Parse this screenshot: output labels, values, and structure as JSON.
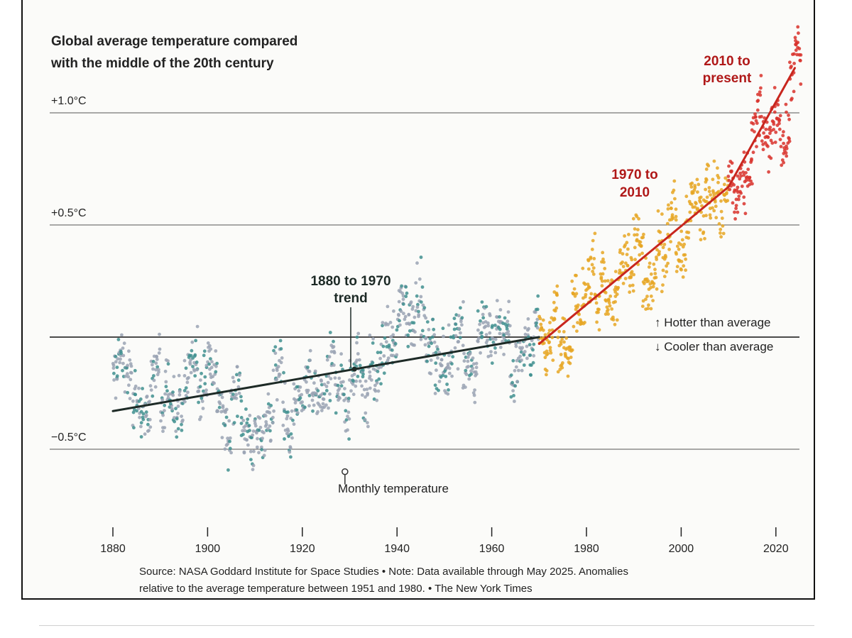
{
  "chart_data": {
    "type": "scatter",
    "title": "Global average temperature compared",
    "subtitle": "with the middle of the 20th century",
    "xlim": [
      1880,
      2025
    ],
    "ylim": [
      -0.75,
      1.35
    ],
    "x_ticks": [
      1880,
      1900,
      1920,
      1940,
      1960,
      1980,
      2000,
      2020
    ],
    "x_tick_labels": [
      "1880",
      "1900",
      "1920",
      "1940",
      "1960",
      "1980",
      "2000",
      "2020"
    ],
    "y_gridlines": [
      {
        "value": 1.0,
        "label": "+1.0°C"
      },
      {
        "value": 0.5,
        "label": "+0.5°C"
      },
      {
        "value": 0.0,
        "label": ""
      },
      {
        "value": -0.5,
        "label": "−0.5°C"
      }
    ],
    "series": [
      {
        "key": "1880-1970",
        "color": "#9aa3b4",
        "accent_color": "#3f8f8f",
        "start_year": 1880,
        "yearly_means": [
          -0.17,
          -0.09,
          -0.11,
          -0.18,
          -0.28,
          -0.33,
          -0.31,
          -0.36,
          -0.17,
          -0.1,
          -0.35,
          -0.22,
          -0.27,
          -0.31,
          -0.3,
          -0.22,
          -0.11,
          -0.11,
          -0.27,
          -0.17,
          -0.08,
          -0.15,
          -0.28,
          -0.37,
          -0.47,
          -0.26,
          -0.22,
          -0.39,
          -0.43,
          -0.48,
          -0.43,
          -0.44,
          -0.36,
          -0.35,
          -0.15,
          -0.14,
          -0.36,
          -0.46,
          -0.3,
          -0.27,
          -0.27,
          -0.19,
          -0.28,
          -0.26,
          -0.27,
          -0.22,
          -0.1,
          -0.22,
          -0.2,
          -0.36,
          -0.16,
          -0.09,
          -0.16,
          -0.29,
          -0.12,
          -0.2,
          -0.15,
          -0.03,
          -0.02,
          -0.03,
          0.12,
          0.18,
          0.05,
          0.07,
          0.21,
          0.09,
          -0.07,
          -0.03,
          -0.11,
          -0.11,
          -0.17,
          -0.07,
          0.01,
          0.08,
          -0.13,
          -0.14,
          -0.19,
          0.05,
          0.06,
          0.03,
          -0.03,
          0.06,
          0.03,
          0.05,
          -0.2,
          -0.11,
          -0.06,
          -0.02,
          -0.08,
          0.05
        ]
      },
      {
        "key": "1970-2010",
        "color": "#e6a623",
        "start_year": 1970,
        "yearly_means": [
          0.03,
          -0.08,
          0.01,
          0.16,
          -0.07,
          -0.01,
          -0.1,
          0.18,
          0.07,
          0.16,
          0.26,
          0.32,
          0.14,
          0.31,
          0.16,
          0.12,
          0.18,
          0.32,
          0.39,
          0.27,
          0.45,
          0.4,
          0.22,
          0.23,
          0.32,
          0.45,
          0.33,
          0.46,
          0.61,
          0.38,
          0.39,
          0.54,
          0.63,
          0.62,
          0.53,
          0.68,
          0.64,
          0.66,
          0.54,
          0.65
        ]
      },
      {
        "key": "2010-present",
        "color": "#d8312c",
        "start_year": 2010,
        "yearly_means": [
          0.72,
          0.61,
          0.64,
          0.68,
          0.75,
          0.9,
          1.01,
          0.92,
          0.85,
          0.98,
          1.01,
          0.85,
          0.89,
          1.17,
          1.28,
          1.2
        ]
      }
    ],
    "trend_lines": [
      {
        "label_line1": "1880 to 1970",
        "label_line2": "trend",
        "color": "#1d2a26",
        "x": [
          1880,
          1970
        ],
        "y": [
          -0.33,
          0.0
        ]
      },
      {
        "label_line1": "1970 to",
        "label_line2": "2010",
        "color": "#c8261e",
        "x": [
          1970,
          2010
        ],
        "y": [
          -0.03,
          0.67
        ]
      },
      {
        "label_line1": "2010 to",
        "label_line2": "present",
        "color": "#c8261e",
        "x": [
          2010,
          2024
        ],
        "y": [
          0.67,
          1.2
        ]
      }
    ],
    "hotter_label": "↑ Hotter than average",
    "cooler_label": "↓ Cooler than average",
    "monthly_label": "Monthly temperature",
    "monthly_marker": {
      "x": 1929,
      "y": -0.6
    },
    "note_line1": "Source: NASA Goddard Institute for Space Studies  •  Note: Data available through May 2025. Anomalies",
    "note_line2": "relative to the average temperature between 1951 and 1980.  •  The New York Times"
  }
}
